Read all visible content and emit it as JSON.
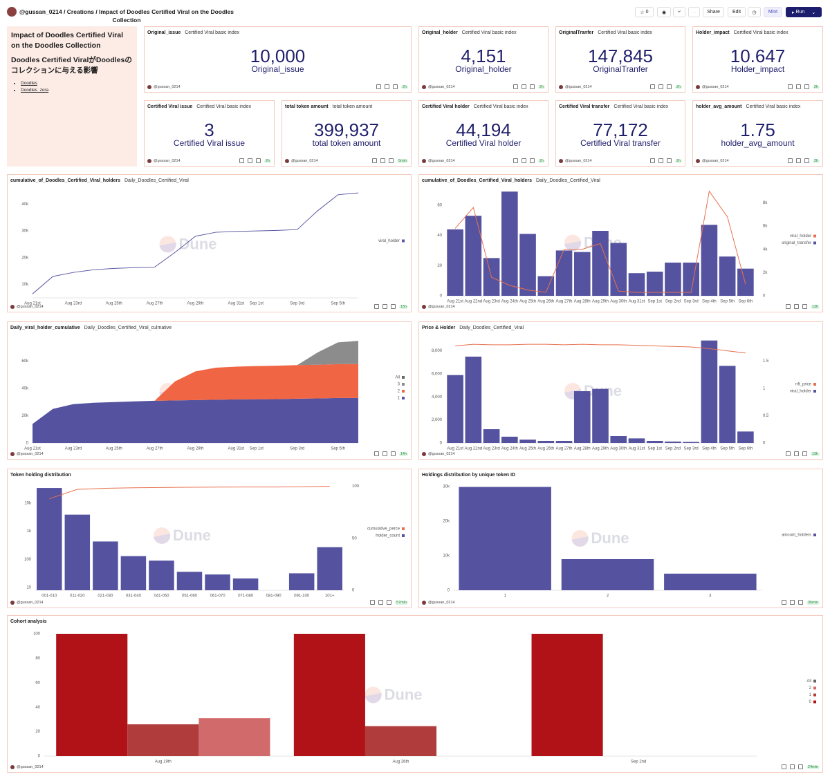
{
  "header": {
    "user": "@gussan_0214",
    "breadcrumb": "Creations / Impact of Doodles Certified Viral on the Doodles Collection",
    "stars": 0,
    "share": "Share",
    "edit": "Edit",
    "mint": "Mint",
    "run": "Run"
  },
  "sidebar": {
    "title": "Impact of Doodles Certified Viral on the Doodles Collection",
    "subtitle": "Doodles Certified ViralがDoodlesのコレクションに与える影響",
    "links": [
      "Doodles",
      "Doodles_zora"
    ]
  },
  "watermark": "Dune",
  "counters": [
    {
      "title": "Original_issue",
      "subtitle": "Certified Viral basic index",
      "value": "10,000",
      "label": "Original_issue",
      "age": "2h"
    },
    {
      "title": "Original_holder",
      "subtitle": "Certified Viral basic index",
      "value": "4,151",
      "label": "Original_holder",
      "age": "2h"
    },
    {
      "title": "OriginalTranfer",
      "subtitle": "Certified Viral basic index",
      "value": "147,845",
      "label": "OriginalTranfer",
      "age": "2h"
    },
    {
      "title": "Holder_impact",
      "subtitle": "Certified Viral basic index",
      "value": "10.647",
      "label": "Holder_impact",
      "age": "2h"
    },
    {
      "title": "Certified Viral issue",
      "subtitle": "Certified Viral basic index",
      "value": "3",
      "label": "Certified Viral issue",
      "age": "2h"
    },
    {
      "title": "total token amount",
      "subtitle": "total token amount",
      "value": "399,937",
      "label": "total token amount",
      "age": "5min"
    },
    {
      "title": "Certified Viral holder",
      "subtitle": "Certified Viral basic index",
      "value": "44,194",
      "label": "Certified Viral holder",
      "age": "2h"
    },
    {
      "title": "Certified Viral transfer",
      "subtitle": "Certified Viral basic index",
      "value": "77,172",
      "label": "Certified Viral transfer",
      "age": "2h"
    },
    {
      "title": "holder_avg_amount",
      "subtitle": "Certified Viral basic index",
      "value": "1.75",
      "label": "holder_avg_amount",
      "age": "2h"
    }
  ],
  "charts": [
    {
      "type": "line",
      "title": "cumulative_of_Doodles_Certified_Viral_holders",
      "subtitle": "Daily_Doodles_Certified_Viral",
      "age": "15h",
      "categories": [
        "Aug 21st",
        null,
        "Aug 23rd",
        null,
        "Aug 25th",
        null,
        "Aug 27th",
        null,
        "Aug 29th",
        null,
        "Aug 31st",
        "Sep 1st",
        null,
        "Sep 3rd",
        null,
        "Sep 5th",
        null
      ],
      "series": [
        {
          "name": "viral_holder",
          "color": "#5a57a3",
          "values": [
            6500,
            13000,
            14500,
            15500,
            16000,
            16300,
            16500,
            22000,
            28000,
            29500,
            29800,
            30000,
            30200,
            30500,
            37500,
            43500,
            44200
          ]
        }
      ],
      "ylim": [
        5000,
        45000
      ],
      "yticks": [
        {
          "value": 10000,
          "label": "10k"
        },
        {
          "value": 20000,
          "label": "20k"
        },
        {
          "value": 30000,
          "label": "30k"
        },
        {
          "value": 40000,
          "label": "40k"
        }
      ]
    },
    {
      "type": "combo",
      "title": "cumulative_of_Doodles_Certified_Viral_holders",
      "subtitle": "Daily_Doodles_Certified_Viral",
      "age": "13h",
      "categories": [
        "Aug 21st",
        "Aug 22nd",
        "Aug 23rd",
        "Aug 24th",
        "Aug 25th",
        "Aug 26th",
        "Aug 27th",
        "Aug 28th",
        "Aug 29th",
        "Aug 30th",
        "Aug 31st",
        "Sep 1st",
        "Sep 2nd",
        "Sep 3rd",
        "Sep 4th",
        "Sep 5th",
        "Sep 6th"
      ],
      "series": [
        {
          "name": "viral_holder",
          "color": "#e8704f",
          "mark": "line",
          "axis": "y2",
          "values": [
            5800,
            7600,
            1600,
            900,
            500,
            300,
            4000,
            4000,
            4500,
            400,
            300,
            300,
            300,
            300,
            9000,
            6800,
            1000
          ]
        },
        {
          "name": "original_transfer",
          "color": "#5553a0",
          "mark": "bar",
          "values": [
            44,
            53,
            25,
            69,
            41,
            13,
            30,
            29,
            43,
            35,
            15,
            16,
            22,
            22,
            47,
            26,
            18
          ]
        }
      ],
      "ylim": [
        0,
        70
      ],
      "yticks": [
        0,
        20,
        40,
        60
      ],
      "y2lim": [
        0,
        9100
      ],
      "y2ticks": [
        0,
        {
          "value": 2000,
          "label": "2k"
        },
        {
          "value": 4000,
          "label": "4k"
        },
        {
          "value": 6000,
          "label": "6k"
        },
        {
          "value": 8000,
          "label": "8k"
        }
      ]
    },
    {
      "type": "area",
      "title": "Daily_viral_holder_cumulative",
      "subtitle": "Daily_Doodles_Certified_Viral_culmative",
      "age": "14h",
      "legend_order": "reverse",
      "legend_total": {
        "name": "All",
        "color": "#666666"
      },
      "categories": [
        "Aug 21st",
        null,
        "Aug 23rd",
        null,
        "Aug 25th",
        null,
        "Aug 27th",
        null,
        "Aug 29th",
        null,
        "Aug 31st",
        "Sep 1st",
        null,
        "Sep 3rd",
        null,
        "Sep 5th",
        null
      ],
      "series": [
        {
          "name": "1",
          "color": "#5553a0",
          "values": [
            14000,
            25000,
            28500,
            29500,
            30000,
            30500,
            31000,
            31200,
            31500,
            31700,
            32000,
            32100,
            32200,
            32500,
            32700,
            33000,
            33000
          ]
        },
        {
          "name": "2",
          "color": "#f06543",
          "values": [
            0,
            0,
            0,
            0,
            0,
            0,
            0,
            14000,
            21000,
            23500,
            24000,
            24300,
            24500,
            24600,
            24700,
            24800,
            24900
          ]
        },
        {
          "name": "3",
          "color": "#8c8c8c",
          "values": [
            0,
            0,
            0,
            0,
            0,
            0,
            0,
            0,
            0,
            0,
            0,
            0,
            0,
            0,
            9000,
            16000,
            17000
          ]
        }
      ],
      "ylim": [
        0,
        76000
      ],
      "yticks": [
        0,
        {
          "value": 20000,
          "label": "20k"
        },
        {
          "value": 40000,
          "label": "40k"
        },
        {
          "value": 60000,
          "label": "60k"
        }
      ]
    },
    {
      "type": "combo",
      "title": "Price & Holder",
      "subtitle": "Daily_Doodles_Certified_Viral",
      "age": "13h",
      "categories": [
        "Aug 21st",
        "Aug 22nd",
        "Aug 23rd",
        "Aug 24th",
        "Aug 25th",
        "Aug 26th",
        "Aug 27th",
        "Aug 28th",
        "Aug 29th",
        "Aug 30th",
        "Aug 31st",
        "Sep 1st",
        "Sep 2nd",
        "Sep 3rd",
        "Sep 4th",
        "Sep 5th",
        "Sep 6th"
      ],
      "series": [
        {
          "name": "nft_price",
          "color": "#e8704f",
          "mark": "line",
          "axis": "y2",
          "values": [
            1.78,
            1.81,
            1.8,
            1.8,
            1.81,
            1.81,
            1.8,
            1.81,
            1.8,
            1.8,
            1.79,
            1.78,
            1.77,
            1.76,
            1.73,
            1.69,
            1.65
          ]
        },
        {
          "name": "viral_holder",
          "color": "#5553a0",
          "mark": "bar",
          "values": [
            5900,
            7500,
            1200,
            550,
            300,
            180,
            180,
            4500,
            4700,
            600,
            400,
            180,
            130,
            100,
            8900,
            6700,
            1000
          ]
        }
      ],
      "ylim": [
        0,
        9000
      ],
      "yticks": [
        0,
        {
          "value": 2000,
          "label": "2,000"
        },
        {
          "value": 4000,
          "label": "4,000"
        },
        {
          "value": 6000,
          "label": "6,000"
        },
        {
          "value": 8000,
          "label": "8,000"
        }
      ],
      "y2lim": [
        0,
        1.9
      ],
      "y2ticks": [
        0,
        0.5,
        1,
        1.5
      ]
    },
    {
      "type": "combo",
      "title": "Token holding distribution",
      "age": "57min",
      "log_y": true,
      "categories": [
        "001-010",
        "011-020",
        "021-030",
        "031-040",
        "041-050",
        "051-060",
        "061-070",
        "071-080",
        "081-090",
        "091-100",
        "101+"
      ],
      "series": [
        {
          "name": "cumulative_perce",
          "color": "#e8704f",
          "mark": "line",
          "axis": "y2",
          "values": [
            88,
            97,
            98,
            98.5,
            98.8,
            99,
            99.2,
            99.3,
            99.3,
            99.4,
            100
          ]
        },
        {
          "name": "holder_count",
          "color": "#5553a0",
          "mark": "bar",
          "values": [
            34000,
            3850,
            430,
            130,
            90,
            36,
            29,
            21,
            null,
            32,
            270
          ]
        }
      ],
      "ylim": [
        8,
        60000
      ],
      "yticks": [
        10,
        100,
        {
          "value": 1000,
          "label": "1k"
        },
        {
          "value": 10000,
          "label": "10k"
        }
      ],
      "y2lim": [
        0,
        105
      ],
      "y2ticks": [
        0,
        50,
        100
      ]
    },
    {
      "type": "bar",
      "title": "Holdings distribution by unique token ID",
      "age": "36min",
      "categories": [
        "1",
        "2",
        "3"
      ],
      "series": [
        {
          "name": "amount_holders",
          "color": "#5553a0",
          "values": [
            29900,
            9000,
            4800
          ]
        }
      ],
      "ylim": [
        0,
        30000
      ],
      "yticks": [
        0,
        {
          "value": 10000,
          "label": "10k"
        },
        {
          "value": 20000,
          "label": "20k"
        },
        {
          "value": 30000,
          "label": "30k"
        }
      ]
    },
    {
      "type": "bar",
      "title": "Cohort analysis",
      "age": "24min",
      "legend_order": "reverse",
      "legend_total": {
        "name": "All",
        "color": "#666666"
      },
      "categories": [
        "Aug 19th",
        "Aug 26th",
        "Sep 2nd"
      ],
      "series": [
        {
          "name": "0",
          "color": "#b01218",
          "values": [
            100,
            100,
            100
          ]
        },
        {
          "name": "1",
          "color": "#b03c3c",
          "values": [
            26,
            24.5,
            null
          ]
        },
        {
          "name": "2",
          "color": "#d16b6b",
          "values": [
            31,
            null,
            null
          ]
        }
      ],
      "ylim": [
        0,
        100
      ],
      "yticks": [
        0,
        20,
        40,
        60,
        80,
        100
      ]
    }
  ]
}
